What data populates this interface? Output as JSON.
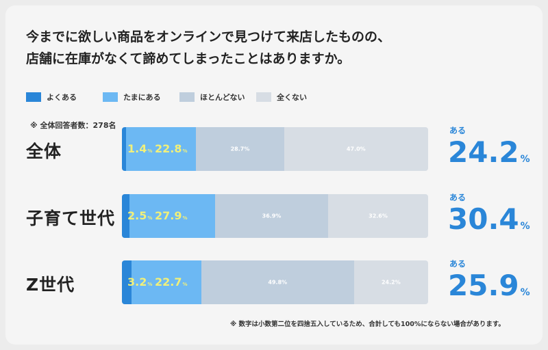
{
  "title_line1": "今までに欲しい商品をオンラインで見つけて来店したものの、",
  "title_line2": "店舗に在庫がなくて諦めてしまったことはありますか。",
  "sample_note": "※ 全体回答者数：278名",
  "footnote": "※ 数字は小数第二位を四捨五入しているため、合計しても100%にならない場合があります。",
  "aru_label": "ある",
  "colors": {
    "yoku_aru": "#2a86d8",
    "tama_ni_aru": "#6cb8f3",
    "hotondo_nai": "#bfcedd",
    "mattaku_nai": "#d7dde4",
    "accent_text": "#2a86d8",
    "highlight_text": "#f1f07a"
  },
  "chart_data": {
    "type": "bar",
    "orientation": "horizontal",
    "stacked": true,
    "categories": [
      "全体",
      "子育て世代",
      "Z世代"
    ],
    "series": [
      {
        "name": "よくある",
        "values": [
          1.4,
          2.5,
          3.2
        ]
      },
      {
        "name": "たまにある",
        "values": [
          22.8,
          27.9,
          22.7
        ]
      },
      {
        "name": "ほとんどない",
        "values": [
          28.7,
          36.9,
          49.8
        ]
      },
      {
        "name": "全くない",
        "values": [
          47.0,
          32.6,
          24.2
        ]
      }
    ],
    "aru_totals": [
      "24.2",
      "30.4",
      "25.9"
    ],
    "unit": "%",
    "legend_position": "top-left",
    "grid": false
  }
}
